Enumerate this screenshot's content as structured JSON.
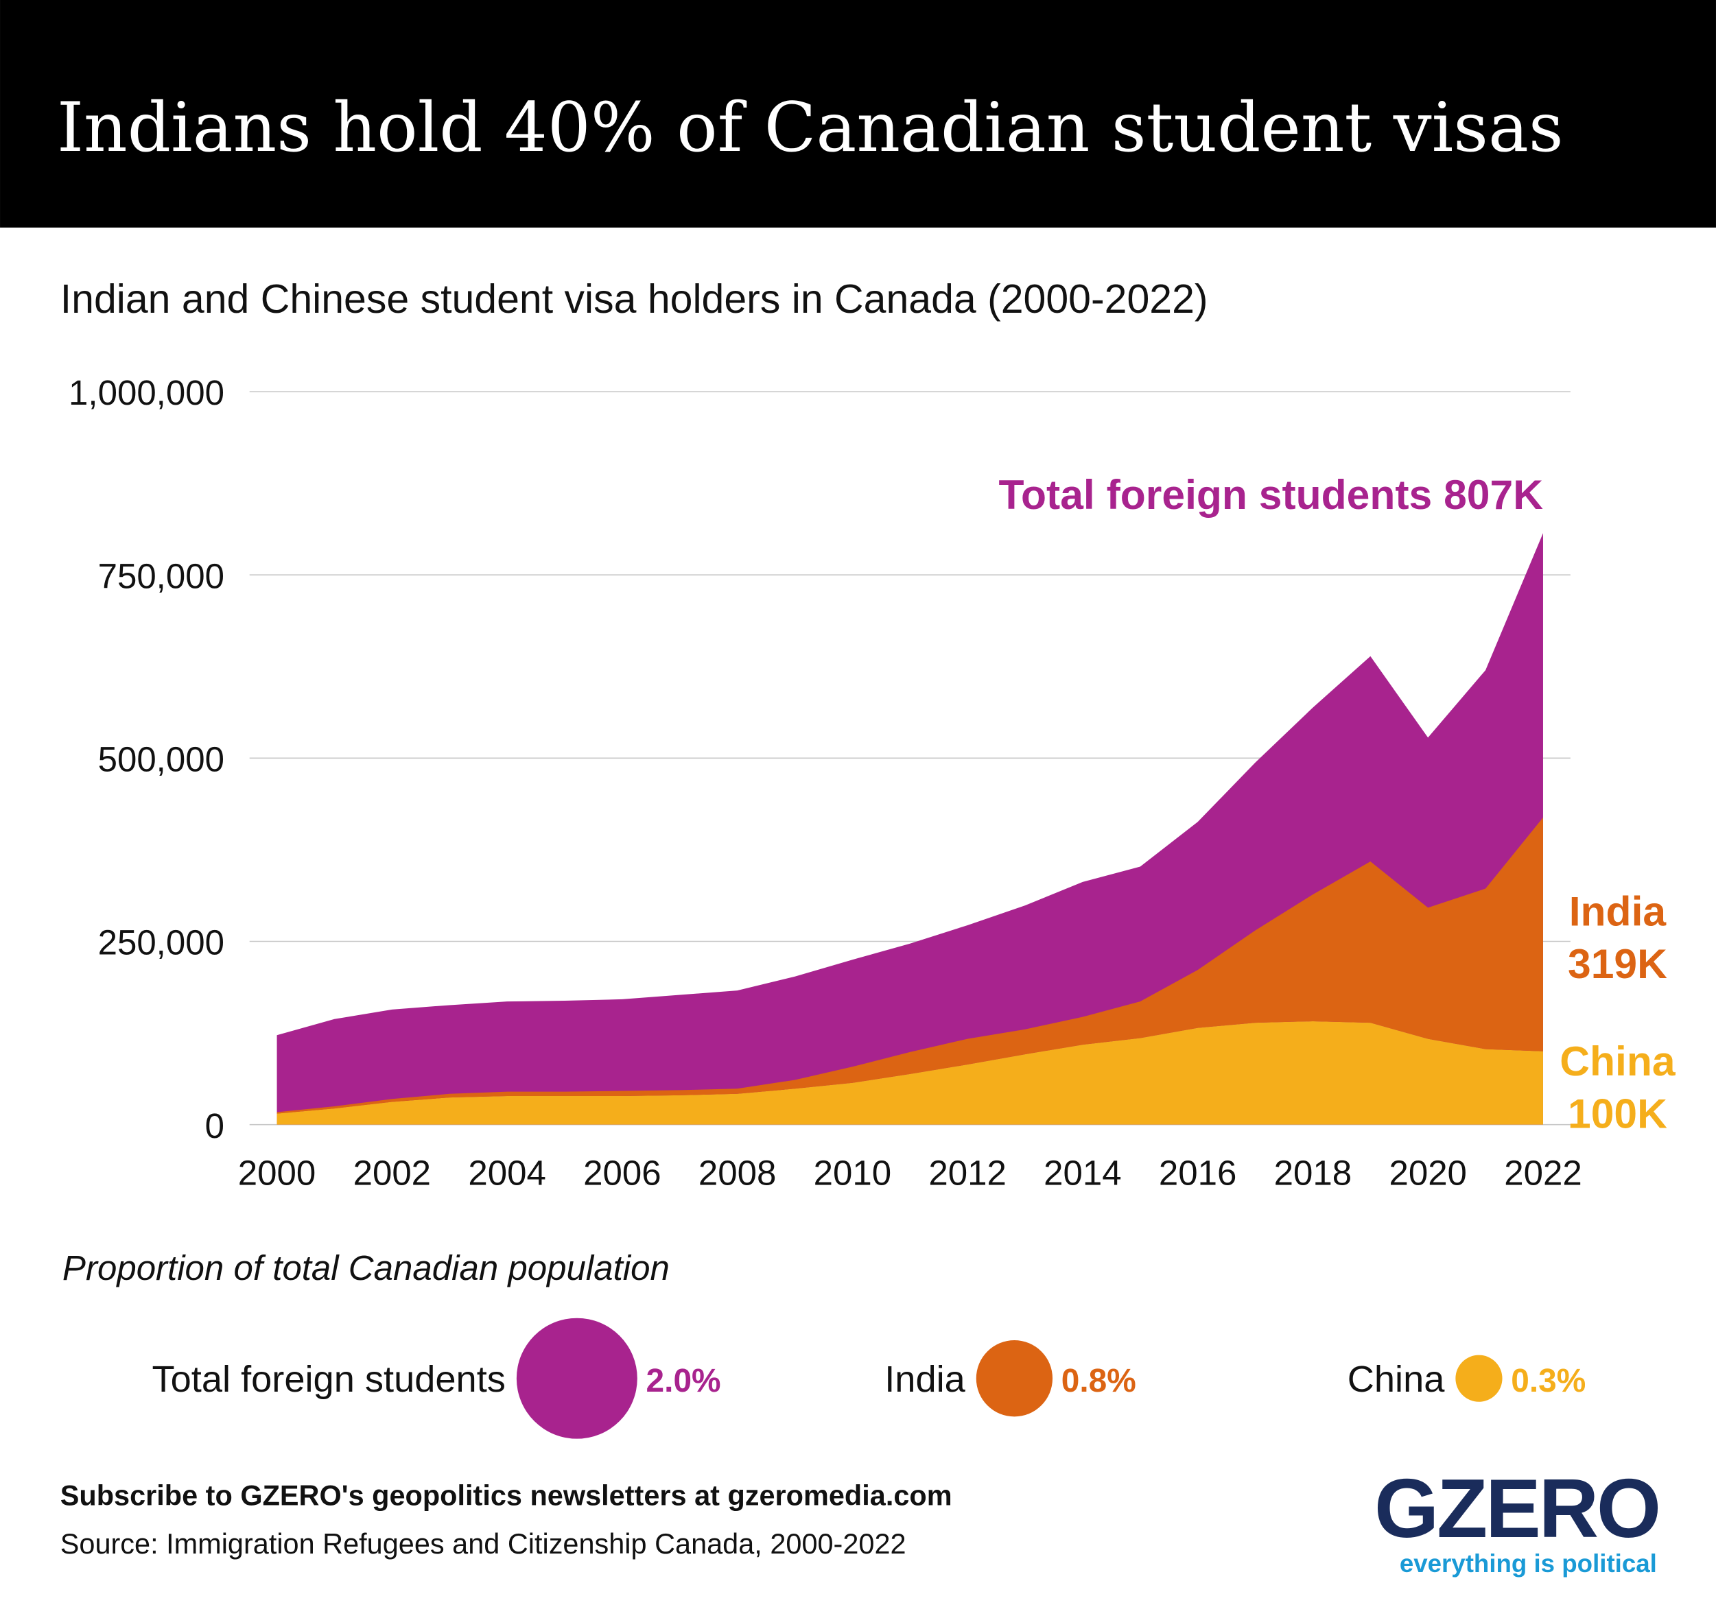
{
  "chart_data": {
    "type": "area",
    "title": "Indians hold 40% of Canadian student visas",
    "subtitle": "Indian and Chinese student visa holders in Canada (2000-2022)",
    "x": [
      2000,
      2001,
      2002,
      2003,
      2004,
      2005,
      2006,
      2007,
      2008,
      2009,
      2010,
      2011,
      2012,
      2013,
      2014,
      2015,
      2016,
      2017,
      2018,
      2019,
      2020,
      2021,
      2022
    ],
    "xlim": [
      2000,
      2022
    ],
    "xticks": [
      2000,
      2002,
      2004,
      2006,
      2008,
      2010,
      2012,
      2014,
      2016,
      2018,
      2020,
      2022
    ],
    "ylim": [
      0,
      1000000
    ],
    "yticks": [
      0,
      {
        "value": 250000,
        "label": "250,000"
      },
      {
        "value": 500000,
        "label": "500,000"
      },
      {
        "value": 750000,
        "label": "750,000"
      },
      {
        "value": 1000000,
        "label": "1,000,000"
      }
    ],
    "grid": true,
    "series": [
      {
        "name": "Total foreign students",
        "color": "#a8238e",
        "stack": false,
        "values": [
          122000,
          144000,
          157000,
          163000,
          168000,
          169000,
          171000,
          177000,
          183000,
          202000,
          225000,
          247000,
          272000,
          299000,
          331000,
          352000,
          413000,
          494000,
          569000,
          639000,
          528000,
          620000,
          807000
        ]
      },
      {
        "name": "China",
        "color": "#f5ae1b",
        "stack": true,
        "values": [
          15000,
          22000,
          31000,
          37000,
          39000,
          39000,
          39000,
          40000,
          42000,
          49000,
          57000,
          69000,
          82000,
          96000,
          109000,
          118000,
          132000,
          139000,
          141000,
          139000,
          117000,
          103000,
          100000
        ]
      },
      {
        "name": "India",
        "color": "#dc6413",
        "stack": true,
        "values": [
          2000,
          3000,
          4000,
          5000,
          6000,
          6000,
          7000,
          7000,
          7000,
          12000,
          22000,
          30000,
          35000,
          34000,
          38000,
          50000,
          79000,
          126000,
          173000,
          220000,
          179000,
          219000,
          319000
        ]
      }
    ],
    "annotations": [
      {
        "lines": [
          "Total foreign students 807K"
        ],
        "color": "#a8238e"
      },
      {
        "lines": [
          "India",
          "319K"
        ],
        "color": "#dc6413"
      },
      {
        "lines": [
          "China",
          "100K"
        ],
        "color": "#f5ae1b"
      }
    ]
  },
  "population_share": {
    "title": "Proportion of total Canadian population",
    "items": [
      {
        "name": "Total foreign students",
        "value": 2.0,
        "value_label": "2.0%",
        "color": "#a8238e"
      },
      {
        "name": "India",
        "value": 0.8,
        "value_label": "0.8%",
        "color": "#dc6413"
      },
      {
        "name": "China",
        "value": 0.3,
        "value_label": "0.3%",
        "color": "#f5ae1b"
      }
    ]
  },
  "footer": {
    "subscribe": "Subscribe to GZERO's geopolitics newsletters at gzeromedia.com",
    "source": "Source: Immigration Refugees and Citizenship Canada, 2000-2022",
    "logo": "GZERO",
    "tagline": "everything is political"
  }
}
